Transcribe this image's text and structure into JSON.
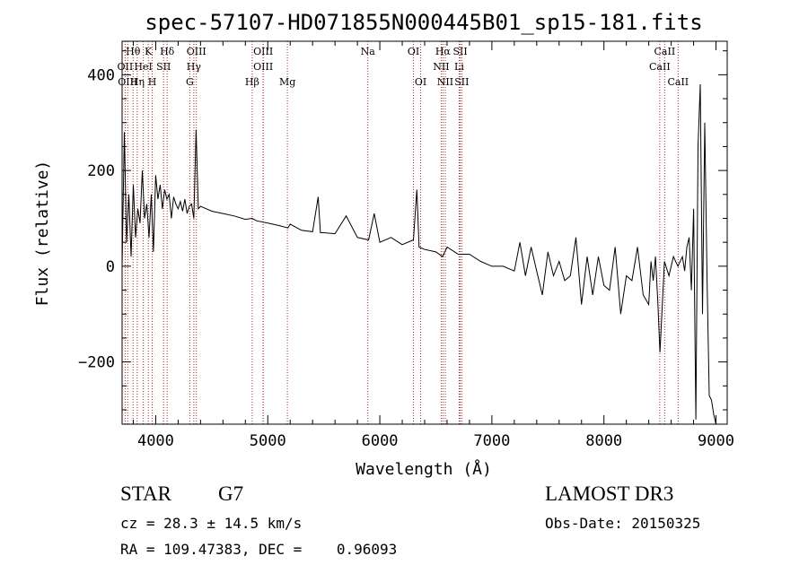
{
  "chart_data": {
    "type": "line",
    "title": "spec-57107-HD071855N000445B01_sp15-181.fits",
    "xlabel": "Wavelength (Å)",
    "ylabel": "Flux (relative)",
    "xlim": [
      3700,
      9100
    ],
    "ylim": [
      -330,
      470
    ],
    "xticks": [
      4000,
      5000,
      6000,
      7000,
      8000,
      9000
    ],
    "xtick_labels": [
      "4000",
      "5000",
      "6000",
      "7000",
      "8000",
      "9000"
    ],
    "yticks": [
      -200,
      0,
      200,
      400
    ],
    "ytick_labels": [
      "−200",
      "0",
      "200",
      "400"
    ],
    "grid": false,
    "series": [
      {
        "name": "spectrum",
        "x": [
          3700,
          3720,
          3740,
          3760,
          3780,
          3800,
          3820,
          3840,
          3860,
          3880,
          3900,
          3920,
          3940,
          3960,
          3980,
          4000,
          4020,
          4040,
          4060,
          4080,
          4100,
          4120,
          4140,
          4160,
          4180,
          4200,
          4220,
          4240,
          4260,
          4280,
          4300,
          4320,
          4340,
          4360,
          4380,
          4400,
          4500,
          4600,
          4700,
          4800,
          4860,
          4900,
          5000,
          5100,
          5180,
          5200,
          5300,
          5400,
          5450,
          5470,
          5500,
          5600,
          5700,
          5800,
          5900,
          5950,
          6000,
          6100,
          6200,
          6300,
          6330,
          6350,
          6400,
          6500,
          6560,
          6600,
          6700,
          6800,
          6900,
          7000,
          7100,
          7200,
          7250,
          7300,
          7350,
          7400,
          7450,
          7500,
          7550,
          7600,
          7650,
          7700,
          7750,
          7800,
          7850,
          7900,
          7950,
          8000,
          8050,
          8100,
          8150,
          8200,
          8250,
          8300,
          8350,
          8400,
          8420,
          8440,
          8460,
          8480,
          8500,
          8540,
          8580,
          8620,
          8660,
          8700,
          8720,
          8740,
          8760,
          8780,
          8800,
          8820,
          8840,
          8860,
          8880,
          8900,
          8920,
          8940,
          8960,
          8980,
          9000
        ],
        "values": [
          0,
          280,
          50,
          150,
          20,
          170,
          60,
          120,
          90,
          200,
          100,
          130,
          60,
          150,
          30,
          190,
          140,
          170,
          120,
          160,
          140,
          150,
          100,
          145,
          130,
          120,
          135,
          115,
          140,
          110,
          125,
          130,
          100,
          285,
          120,
          125,
          115,
          110,
          105,
          98,
          100,
          95,
          90,
          85,
          80,
          88,
          75,
          72,
          145,
          70,
          70,
          68,
          105,
          60,
          55,
          110,
          50,
          60,
          45,
          55,
          160,
          40,
          35,
          30,
          20,
          40,
          25,
          25,
          10,
          0,
          0,
          -10,
          50,
          -20,
          40,
          -10,
          -60,
          30,
          -20,
          10,
          -30,
          -20,
          60,
          -80,
          20,
          -60,
          20,
          -40,
          -50,
          40,
          -100,
          -20,
          -30,
          40,
          -60,
          -80,
          10,
          -30,
          20,
          -70,
          -180,
          10,
          -20,
          20,
          0,
          20,
          -10,
          40,
          60,
          -50,
          120,
          -320,
          250,
          380,
          -100,
          300,
          -20,
          -270,
          -280,
          -310,
          -330
        ]
      }
    ],
    "line_markers": [
      {
        "label": "Hθ",
        "x": 3798,
        "row": 0
      },
      {
        "label": "K",
        "x": 3934,
        "row": 0
      },
      {
        "label": "Hδ",
        "x": 4102,
        "row": 0
      },
      {
        "label": "OIII",
        "x": 4363,
        "row": 0
      },
      {
        "label": "OIII",
        "x": 4959,
        "row": 0
      },
      {
        "label": "OI",
        "x": 6300,
        "row": 0
      },
      {
        "label": "Hα",
        "x": 6563,
        "row": 0
      },
      {
        "label": "SII",
        "x": 6717,
        "row": 0
      },
      {
        "label": "CaII",
        "x": 8542,
        "row": 0
      },
      {
        "label": "OII",
        "x": 3727,
        "row": 1
      },
      {
        "label": "HeI",
        "x": 3889,
        "row": 1
      },
      {
        "label": "SII",
        "x": 4070,
        "row": 1
      },
      {
        "label": "Hγ",
        "x": 4340,
        "row": 1
      },
      {
        "label": "OIII",
        "x": 4959,
        "row": 1
      },
      {
        "label": "NII",
        "x": 6548,
        "row": 1
      },
      {
        "label": "Li",
        "x": 6708,
        "row": 1
      },
      {
        "label": "CaII",
        "x": 8498,
        "row": 1
      },
      {
        "label": "OIII",
        "x": 3750,
        "row": 2
      },
      {
        "label": "Hη",
        "x": 3835,
        "row": 2
      },
      {
        "label": "H",
        "x": 3969,
        "row": 2
      },
      {
        "label": "G",
        "x": 4304,
        "row": 2
      },
      {
        "label": "Hβ",
        "x": 4861,
        "row": 2
      },
      {
        "label": "Mg",
        "x": 5175,
        "row": 2
      },
      {
        "label": "Na",
        "x": 5893,
        "row": 0
      },
      {
        "label": "OI",
        "x": 6364,
        "row": 2
      },
      {
        "label": "NII",
        "x": 6584,
        "row": 2
      },
      {
        "label": "SII",
        "x": 6731,
        "row": 2
      },
      {
        "label": "CaII",
        "x": 8662,
        "row": 2
      }
    ]
  },
  "info": {
    "object_type": "STAR",
    "subclass": "G7",
    "survey": "LAMOST DR3",
    "cz": "cz = 28.3 ± 14.5 km/s",
    "obs_date": "Obs-Date: 20150325",
    "coords": "RA = 109.47383, DEC =    0.96093"
  }
}
